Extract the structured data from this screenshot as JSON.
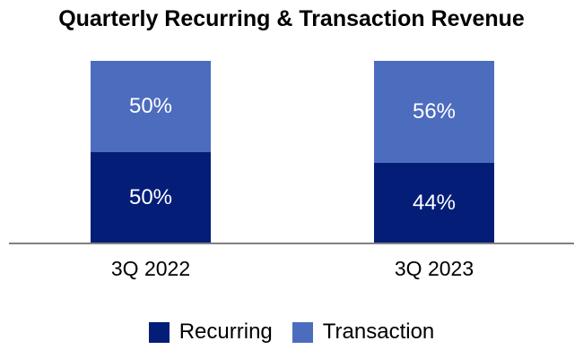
{
  "title": "Quarterly Recurring & Transaction Revenue",
  "chart_data": {
    "type": "bar",
    "stacked": true,
    "title": "Quarterly Recurring & Transaction Revenue",
    "categories": [
      "3Q 2022",
      "3Q 2023"
    ],
    "series": [
      {
        "name": "Recurring",
        "color": "#041E78",
        "values": [
          50,
          44
        ],
        "labels": [
          "50%",
          "44%"
        ]
      },
      {
        "name": "Transaction",
        "color": "#4C6CBE",
        "values": [
          50,
          56
        ],
        "labels": [
          "50%",
          "56%"
        ]
      }
    ],
    "unit": "%",
    "ylim": [
      0,
      100
    ],
    "grid": false,
    "legend_position": "bottom",
    "axis_line_color": "#808080",
    "data_label_color": "#FFFFFF",
    "text_color": "#000000",
    "background": "#FFFFFF"
  }
}
